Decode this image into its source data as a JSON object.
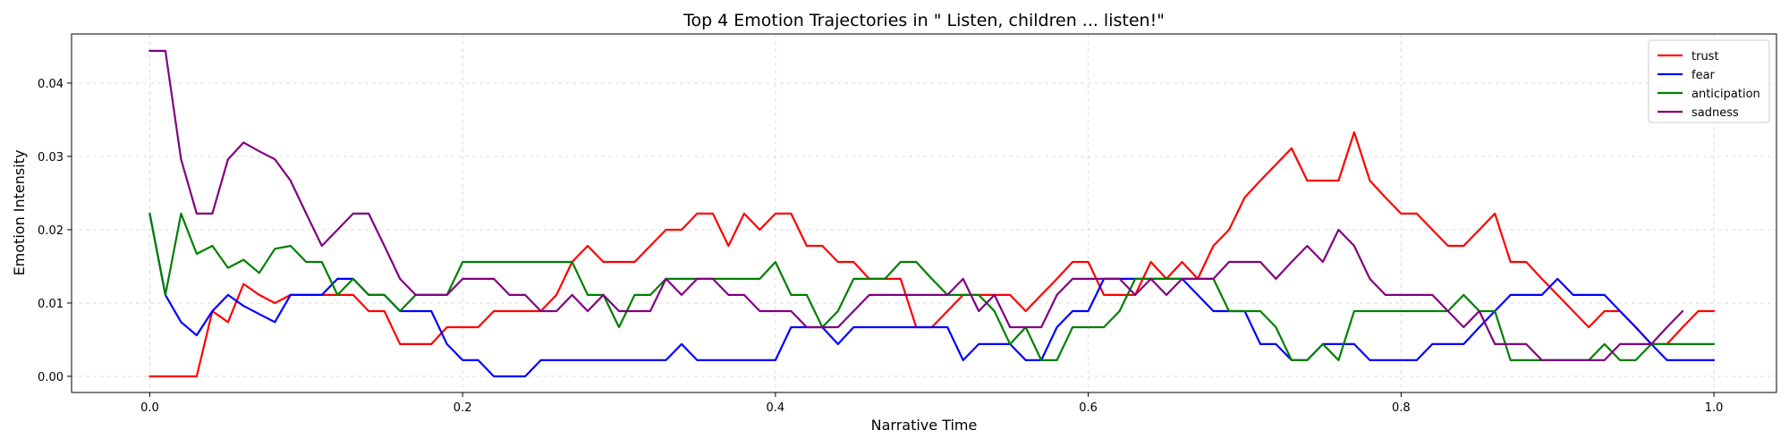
{
  "chart_data": {
    "type": "line",
    "title": "Top 4 Emotion Trajectories in \" Listen, children ... listen!\"",
    "xlabel": "Narrative Time",
    "ylabel": "Emotion Intensity",
    "xlim": [
      -0.05,
      1.04
    ],
    "ylim": [
      -0.0022,
      0.0467
    ],
    "xticks": [
      0.0,
      0.2,
      0.4,
      0.6,
      0.8,
      1.0
    ],
    "xtick_labels": [
      "0.0",
      "0.2",
      "0.4",
      "0.6",
      "0.8",
      "1.0"
    ],
    "yticks": [
      0.0,
      0.01,
      0.02,
      0.03,
      0.04
    ],
    "ytick_labels": [
      "0.00",
      "0.01",
      "0.02",
      "0.03",
      "0.04"
    ],
    "grid": true,
    "legend_position": "top-right",
    "x_start": 0.0,
    "x_step": 0.01,
    "series": [
      {
        "name": "trust",
        "color": "#ff0000",
        "values": [
          0.0,
          0.0,
          0.0,
          0.0,
          0.0089,
          0.0074,
          0.0126,
          0.0111,
          0.01,
          0.0111,
          0.0111,
          0.0111,
          0.0111,
          0.0111,
          0.0089,
          0.0089,
          0.0044,
          0.0044,
          0.0044,
          0.0067,
          0.0067,
          0.0067,
          0.0089,
          0.0089,
          0.0089,
          0.0089,
          0.0111,
          0.0156,
          0.0178,
          0.0156,
          0.0156,
          0.0156,
          0.0178,
          0.02,
          0.02,
          0.0222,
          0.0222,
          0.0178,
          0.0222,
          0.02,
          0.0222,
          0.0222,
          0.0178,
          0.0178,
          0.0156,
          0.0156,
          0.0133,
          0.0133,
          0.0133,
          0.0067,
          0.0067,
          0.0089,
          0.0111,
          0.0111,
          0.0111,
          0.0111,
          0.0089,
          0.0111,
          0.0133,
          0.0156,
          0.0156,
          0.0111,
          0.0111,
          0.0111,
          0.0156,
          0.0133,
          0.0156,
          0.0133,
          0.0178,
          0.02,
          0.0244,
          0.0267,
          0.0289,
          0.0311,
          0.0267,
          0.0267,
          0.0267,
          0.0333,
          0.0267,
          0.0244,
          0.0222,
          0.0222,
          0.02,
          0.0178,
          0.0178,
          0.02,
          0.0222,
          0.0156,
          0.0156,
          0.0133,
          0.0111,
          0.0089,
          0.0067,
          0.0089,
          0.0089,
          0.0067,
          0.0044,
          0.0044,
          0.0067,
          0.0089,
          0.0089
        ]
      },
      {
        "name": "fear",
        "color": "#0000ff",
        "values": [
          0.0222,
          0.0111,
          0.0074,
          0.0056,
          0.0089,
          0.0111,
          0.0096,
          0.0085,
          0.0074,
          0.0111,
          0.0111,
          0.0111,
          0.0133,
          0.0133,
          0.0111,
          0.0111,
          0.0089,
          0.0089,
          0.0089,
          0.0044,
          0.0022,
          0.0022,
          0.0,
          0.0,
          0.0,
          0.0022,
          0.0022,
          0.0022,
          0.0022,
          0.0022,
          0.0022,
          0.0022,
          0.0022,
          0.0022,
          0.0044,
          0.0022,
          0.0022,
          0.0022,
          0.0022,
          0.0022,
          0.0022,
          0.0067,
          0.0067,
          0.0067,
          0.0044,
          0.0067,
          0.0067,
          0.0067,
          0.0067,
          0.0067,
          0.0067,
          0.0067,
          0.0022,
          0.0044,
          0.0044,
          0.0044,
          0.0022,
          0.0022,
          0.0067,
          0.0089,
          0.0089,
          0.0133,
          0.0133,
          0.0133,
          0.0133,
          0.0133,
          0.0133,
          0.0111,
          0.0089,
          0.0089,
          0.0089,
          0.0044,
          0.0044,
          0.0022,
          0.0022,
          0.0044,
          0.0044,
          0.0044,
          0.0022,
          0.0022,
          0.0022,
          0.0022,
          0.0044,
          0.0044,
          0.0044,
          0.0067,
          0.0089,
          0.0111,
          0.0111,
          0.0111,
          0.0133,
          0.0111,
          0.0111,
          0.0111,
          0.0089,
          0.0067,
          0.0044,
          0.0022,
          0.0022,
          0.0022,
          0.0022
        ]
      },
      {
        "name": "anticipation",
        "color": "#008000",
        "values": [
          0.0222,
          0.0111,
          0.0222,
          0.0167,
          0.0178,
          0.0148,
          0.0159,
          0.0141,
          0.0174,
          0.0178,
          0.0156,
          0.0156,
          0.0111,
          0.0133,
          0.0111,
          0.0111,
          0.0089,
          0.0111,
          0.0111,
          0.0111,
          0.0156,
          0.0156,
          0.0156,
          0.0156,
          0.0156,
          0.0156,
          0.0156,
          0.0156,
          0.0111,
          0.0111,
          0.0067,
          0.0111,
          0.0111,
          0.0133,
          0.0133,
          0.0133,
          0.0133,
          0.0133,
          0.0133,
          0.0133,
          0.0156,
          0.0111,
          0.0111,
          0.0067,
          0.0089,
          0.0133,
          0.0133,
          0.0133,
          0.0156,
          0.0156,
          0.0133,
          0.0111,
          0.0111,
          0.0111,
          0.0089,
          0.0044,
          0.0067,
          0.0022,
          0.0022,
          0.0067,
          0.0067,
          0.0067,
          0.0089,
          0.0133,
          0.0133,
          0.0133,
          0.0133,
          0.0133,
          0.0133,
          0.0089,
          0.0089,
          0.0089,
          0.0067,
          0.0022,
          0.0022,
          0.0044,
          0.0022,
          0.0089,
          0.0089,
          0.0089,
          0.0089,
          0.0089,
          0.0089,
          0.0089,
          0.0111,
          0.0089,
          0.0089,
          0.0022,
          0.0022,
          0.0022,
          0.0022,
          0.0022,
          0.0022,
          0.0044,
          0.0022,
          0.0022,
          0.0044,
          0.0044,
          0.0044,
          0.0044,
          0.0044
        ]
      },
      {
        "name": "sadness",
        "color": "#800080",
        "values": [
          0.0444,
          0.0444,
          0.0296,
          0.0222,
          0.0222,
          0.0296,
          0.0319,
          0.0307,
          0.0296,
          0.0267,
          0.0222,
          0.0178,
          0.02,
          0.0222,
          0.0222,
          0.0178,
          0.0133,
          0.0111,
          0.0111,
          0.0111,
          0.0133,
          0.0133,
          0.0133,
          0.0111,
          0.0111,
          0.0089,
          0.0089,
          0.0111,
          0.0089,
          0.0111,
          0.0089,
          0.0089,
          0.0089,
          0.0133,
          0.0111,
          0.0133,
          0.0133,
          0.0111,
          0.0111,
          0.0089,
          0.0089,
          0.0089,
          0.0067,
          0.0067,
          0.0067,
          0.0089,
          0.0111,
          0.0111,
          0.0111,
          0.0111,
          0.0111,
          0.0111,
          0.0133,
          0.0089,
          0.0111,
          0.0067,
          0.0067,
          0.0067,
          0.0111,
          0.0133,
          0.0133,
          0.0133,
          0.0133,
          0.0111,
          0.0133,
          0.0111,
          0.0133,
          0.0133,
          0.0133,
          0.0156,
          0.0156,
          0.0156,
          0.0133,
          0.0156,
          0.0178,
          0.0156,
          0.02,
          0.0178,
          0.0133,
          0.0111,
          0.0111,
          0.0111,
          0.0111,
          0.0089,
          0.0067,
          0.0089,
          0.0044,
          0.0044,
          0.0044,
          0.0022,
          0.0022,
          0.0022,
          0.0022,
          0.0022,
          0.0044,
          0.0044,
          0.0044,
          0.0067,
          0.0089
        ]
      }
    ]
  }
}
